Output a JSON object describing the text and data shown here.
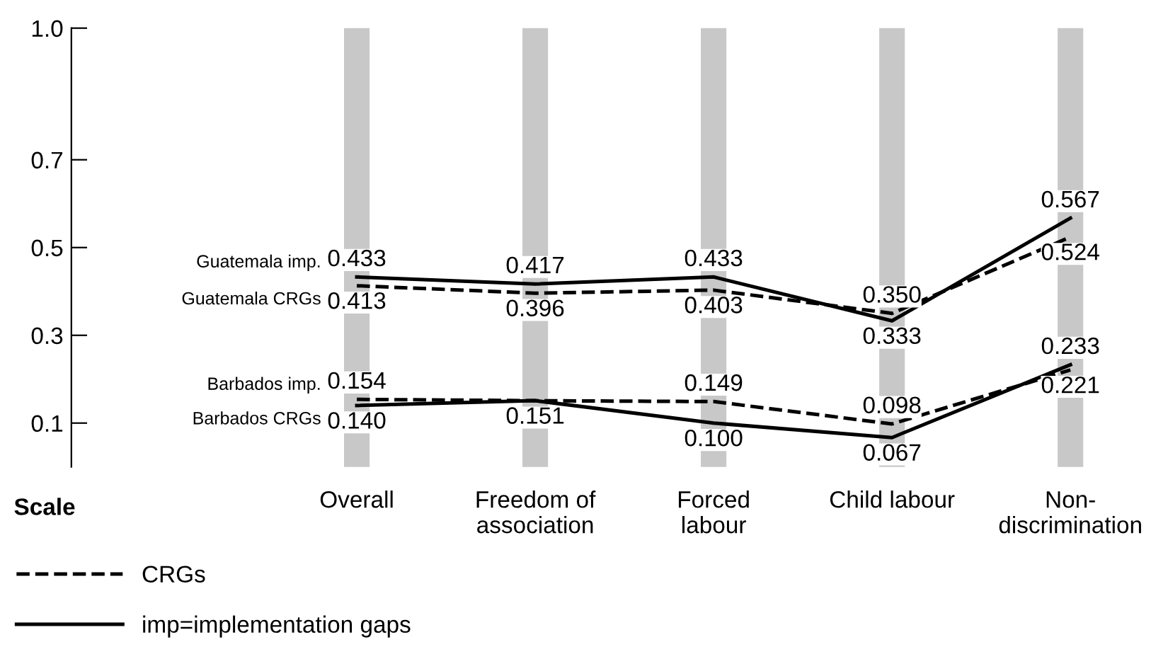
{
  "chart_data": {
    "type": "line",
    "categories": [
      "Overall",
      "Freedom of\nassociation",
      "Forced\nlabour",
      "Child labour",
      "Non-\ndiscrimination"
    ],
    "series": [
      {
        "name": "Guatemala CRGs",
        "color": "#000000",
        "line_style": "dashed",
        "values": [
          0.413,
          0.396,
          0.403,
          0.35,
          0.524
        ],
        "value_labels": [
          "0.413",
          "0.396",
          "0.403",
          "0.350",
          "0.524"
        ]
      },
      {
        "name": "Guatemala imp.",
        "color": "#000000",
        "line_style": "solid",
        "values": [
          0.433,
          0.417,
          0.433,
          0.333,
          0.567
        ],
        "value_labels": [
          "0.433",
          "0.417",
          "0.433",
          "0.333",
          "0.567"
        ]
      },
      {
        "name": "Barbados imp.",
        "color": "#000000",
        "line_style": "dashed",
        "values": [
          0.154,
          0.151,
          0.149,
          0.098,
          0.221
        ],
        "value_labels": [
          "0.154",
          "0.151",
          "0.149",
          "0.098",
          "0.221"
        ]
      },
      {
        "name": "Barbados CRGs",
        "color": "#000000",
        "line_style": "solid",
        "values": [
          0.14,
          0.151,
          0.1,
          0.067,
          0.233
        ],
        "value_labels": [
          "0.140",
          null,
          "0.100",
          "0.067",
          "0.233"
        ]
      }
    ],
    "ylim": [
      0,
      1.0
    ],
    "yticks": [
      0.1,
      0.3,
      0.5,
      0.7,
      {
        "value": 1.0,
        "label": "1.0"
      }
    ],
    "grid": "x",
    "marker": "none",
    "legend": "bottom left",
    "annotations": [
      "Scale",
      "CRGs",
      "imp=implementation gaps"
    ]
  }
}
